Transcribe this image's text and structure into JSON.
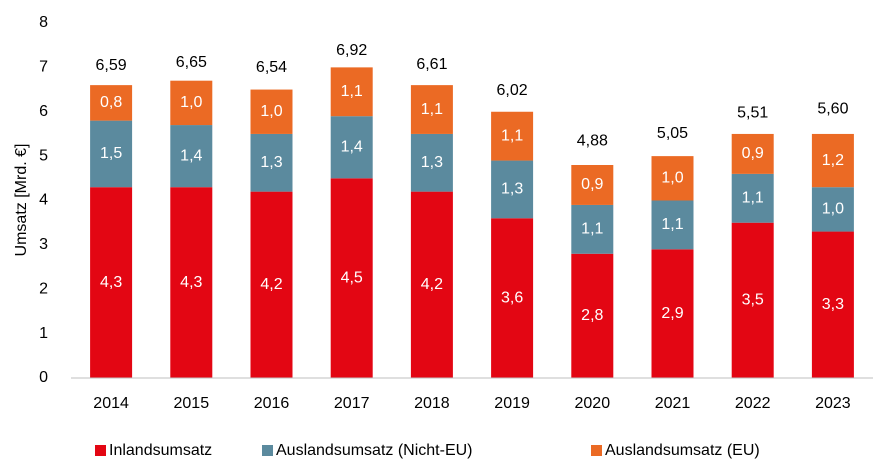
{
  "chart_data": {
    "type": "stacked_bar",
    "y_label": "Umsatz [Mrd. €]",
    "categories": [
      "2014",
      "2015",
      "2016",
      "2017",
      "2018",
      "2019",
      "2020",
      "2021",
      "2022",
      "2023"
    ],
    "series": [
      {
        "name": "Inlandsumsatz",
        "color": "#e30613",
        "values": [
          4.3,
          4.3,
          4.2,
          4.5,
          4.2,
          3.6,
          2.8,
          2.9,
          3.5,
          3.3
        ],
        "value_labels": [
          "4,3",
          "4,3",
          "4,2",
          "4,5",
          "4,2",
          "3,6",
          "2,8",
          "2,9",
          "3,5",
          "3,3"
        ]
      },
      {
        "name": "Auslandsumsatz (Nicht-EU)",
        "color": "#5b8a9e",
        "values": [
          1.5,
          1.4,
          1.3,
          1.4,
          1.3,
          1.3,
          1.1,
          1.1,
          1.1,
          1.0
        ],
        "value_labels": [
          "1,5",
          "1,4",
          "1,3",
          "1,4",
          "1,3",
          "1,3",
          "1,1",
          "1,1",
          "1,1",
          "1,0"
        ]
      },
      {
        "name": "Auslandsumsatz (EU)",
        "color": "#eb6a24",
        "values": [
          0.8,
          1.0,
          1.0,
          1.1,
          1.1,
          1.1,
          0.9,
          1.0,
          0.9,
          1.2
        ],
        "value_labels": [
          "0,8",
          "1,0",
          "1,0",
          "1,1",
          "1,1",
          "1,1",
          "0,9",
          "1,0",
          "0,9",
          "1,2"
        ]
      }
    ],
    "totals": [
      6.59,
      6.65,
      6.54,
      6.92,
      6.61,
      6.02,
      4.88,
      5.05,
      5.51,
      5.6
    ],
    "total_labels": [
      "6,59",
      "6,65",
      "6,54",
      "6,92",
      "6,61",
      "6,02",
      "4,88",
      "5,05",
      "5,51",
      "5,60"
    ],
    "ylim": [
      0,
      8
    ],
    "yticks": [
      0,
      1,
      2,
      3,
      4,
      5,
      6,
      7,
      8
    ],
    "grid": false,
    "legend": "bottom"
  }
}
